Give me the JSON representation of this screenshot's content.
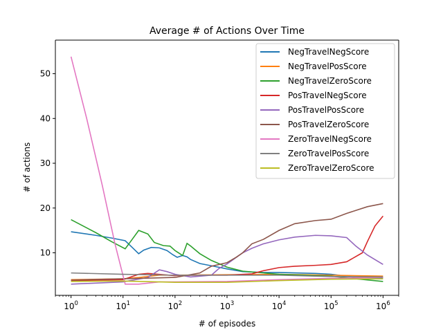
{
  "chart_data": {
    "type": "line",
    "title": "Average # of Actions Over Time",
    "xlabel": "# of episodes",
    "ylabel": "# of actions",
    "xscale": "log",
    "xlim": [
      1,
      1000000
    ],
    "ylim": [
      0.5,
      57.5
    ],
    "x_ticks": [
      {
        "value": 1,
        "base": "10",
        "exp": "0"
      },
      {
        "value": 10,
        "base": "10",
        "exp": "1"
      },
      {
        "value": 100,
        "base": "10",
        "exp": "2"
      },
      {
        "value": 1000,
        "base": "10",
        "exp": "3"
      },
      {
        "value": 10000,
        "base": "10",
        "exp": "4"
      },
      {
        "value": 100000,
        "base": "10",
        "exp": "5"
      },
      {
        "value": 1000000,
        "base": "10",
        "exp": "6"
      }
    ],
    "y_ticks": [
      10,
      20,
      30,
      40,
      50
    ],
    "grid": false,
    "legend_position": "top-right",
    "series": [
      {
        "name": "NegTravelNegScore",
        "color": "#1f77b4",
        "points": [
          [
            1,
            14.7
          ],
          [
            3,
            13.9
          ],
          [
            6,
            13.3
          ],
          [
            11,
            12.7
          ],
          [
            15,
            11.2
          ],
          [
            20,
            9.8
          ],
          [
            25,
            10.6
          ],
          [
            35,
            11.2
          ],
          [
            50,
            11.1
          ],
          [
            70,
            10.5
          ],
          [
            90,
            9.6
          ],
          [
            110,
            9.0
          ],
          [
            140,
            9.4
          ],
          [
            170,
            9.1
          ],
          [
            200,
            8.5
          ],
          [
            300,
            7.6
          ],
          [
            500,
            7.1
          ],
          [
            1000,
            6.4
          ],
          [
            2000,
            5.8
          ],
          [
            5000,
            5.6
          ],
          [
            10000,
            5.6
          ],
          [
            50000,
            5.4
          ],
          [
            100000,
            5.2
          ],
          [
            300000,
            4.5
          ],
          [
            1000000,
            4.4
          ]
        ]
      },
      {
        "name": "NegTravelPosScore",
        "color": "#ff7f0e",
        "points": [
          [
            1,
            4.0
          ],
          [
            10,
            4.2
          ],
          [
            20,
            4.5
          ],
          [
            50,
            5.0
          ],
          [
            100,
            5.0
          ],
          [
            1000,
            5.1
          ],
          [
            10000,
            5.2
          ],
          [
            100000,
            5.0
          ],
          [
            300000,
            4.9
          ],
          [
            1000000,
            4.8
          ]
        ]
      },
      {
        "name": "NegTravelZeroScore",
        "color": "#2ca02c",
        "points": [
          [
            1,
            17.4
          ],
          [
            3,
            14.5
          ],
          [
            6,
            12.5
          ],
          [
            11,
            10.9
          ],
          [
            15,
            13.0
          ],
          [
            20,
            15.0
          ],
          [
            30,
            14.2
          ],
          [
            40,
            12.3
          ],
          [
            60,
            11.6
          ],
          [
            80,
            11.5
          ],
          [
            100,
            10.5
          ],
          [
            140,
            9.4
          ],
          [
            170,
            12.1
          ],
          [
            200,
            11.5
          ],
          [
            300,
            9.8
          ],
          [
            500,
            8.3
          ],
          [
            1000,
            6.8
          ],
          [
            2000,
            5.9
          ],
          [
            10000,
            5.2
          ],
          [
            100000,
            4.8
          ],
          [
            300000,
            4.2
          ],
          [
            1000000,
            3.6
          ]
        ]
      },
      {
        "name": "PosTravelNegScore",
        "color": "#d62728",
        "points": [
          [
            1,
            3.8
          ],
          [
            10,
            4.0
          ],
          [
            20,
            5.2
          ],
          [
            30,
            5.4
          ],
          [
            60,
            5.1
          ],
          [
            100,
            4.9
          ],
          [
            300,
            5.0
          ],
          [
            1000,
            5.0
          ],
          [
            3000,
            5.3
          ],
          [
            5000,
            6.0
          ],
          [
            10000,
            6.7
          ],
          [
            20000,
            7.0
          ],
          [
            50000,
            7.2
          ],
          [
            100000,
            7.4
          ],
          [
            200000,
            8.0
          ],
          [
            400000,
            10.0
          ],
          [
            500000,
            12.5
          ],
          [
            700000,
            16.0
          ],
          [
            1000000,
            18.2
          ]
        ]
      },
      {
        "name": "PosTravelPosScore",
        "color": "#9467bd",
        "points": [
          [
            1,
            3.0
          ],
          [
            10,
            3.5
          ],
          [
            30,
            4.5
          ],
          [
            50,
            6.2
          ],
          [
            70,
            5.8
          ],
          [
            100,
            5.2
          ],
          [
            200,
            4.6
          ],
          [
            500,
            5.0
          ],
          [
            700,
            6.5
          ],
          [
            1000,
            7.5
          ],
          [
            2000,
            10.0
          ],
          [
            3000,
            11.0
          ],
          [
            5000,
            12.0
          ],
          [
            10000,
            12.9
          ],
          [
            20000,
            13.5
          ],
          [
            50000,
            13.9
          ],
          [
            100000,
            13.8
          ],
          [
            200000,
            13.4
          ],
          [
            300000,
            11.5
          ],
          [
            500000,
            9.5
          ],
          [
            1000000,
            7.4
          ]
        ]
      },
      {
        "name": "PosTravelZeroScore",
        "color": "#8c564b",
        "points": [
          [
            1,
            3.9
          ],
          [
            10,
            4.2
          ],
          [
            100,
            4.5
          ],
          [
            300,
            5.5
          ],
          [
            500,
            7.0
          ],
          [
            1000,
            7.8
          ],
          [
            1500,
            9.0
          ],
          [
            2000,
            10.0
          ],
          [
            3000,
            12.0
          ],
          [
            5000,
            13.0
          ],
          [
            10000,
            15.0
          ],
          [
            20000,
            16.5
          ],
          [
            50000,
            17.2
          ],
          [
            100000,
            17.5
          ],
          [
            200000,
            18.8
          ],
          [
            500000,
            20.3
          ],
          [
            1000000,
            21.0
          ]
        ]
      },
      {
        "name": "ZeroTravelNegScore",
        "color": "#e377c2",
        "points": [
          [
            1,
            53.8
          ],
          [
            2,
            40.0
          ],
          [
            4,
            25.0
          ],
          [
            7,
            12.0
          ],
          [
            11,
            3.0
          ],
          [
            20,
            3.0
          ],
          [
            50,
            3.5
          ],
          [
            100,
            3.5
          ],
          [
            1000,
            3.6
          ],
          [
            10000,
            4.0
          ],
          [
            100000,
            4.3
          ],
          [
            1000000,
            4.5
          ]
        ]
      },
      {
        "name": "ZeroTravelPosScore",
        "color": "#7f7f7f",
        "points": [
          [
            1,
            5.5
          ],
          [
            10,
            5.2
          ],
          [
            100,
            5.0
          ],
          [
            1000,
            5.0
          ],
          [
            10000,
            5.0
          ],
          [
            100000,
            4.7
          ],
          [
            1000000,
            4.6
          ]
        ]
      },
      {
        "name": "ZeroTravelZeroScore",
        "color": "#bcbd22",
        "points": [
          [
            1,
            3.6
          ],
          [
            10,
            3.7
          ],
          [
            50,
            3.5
          ],
          [
            100,
            3.4
          ],
          [
            1000,
            3.4
          ],
          [
            10000,
            3.8
          ],
          [
            100000,
            4.1
          ],
          [
            1000000,
            4.2
          ]
        ]
      }
    ]
  }
}
